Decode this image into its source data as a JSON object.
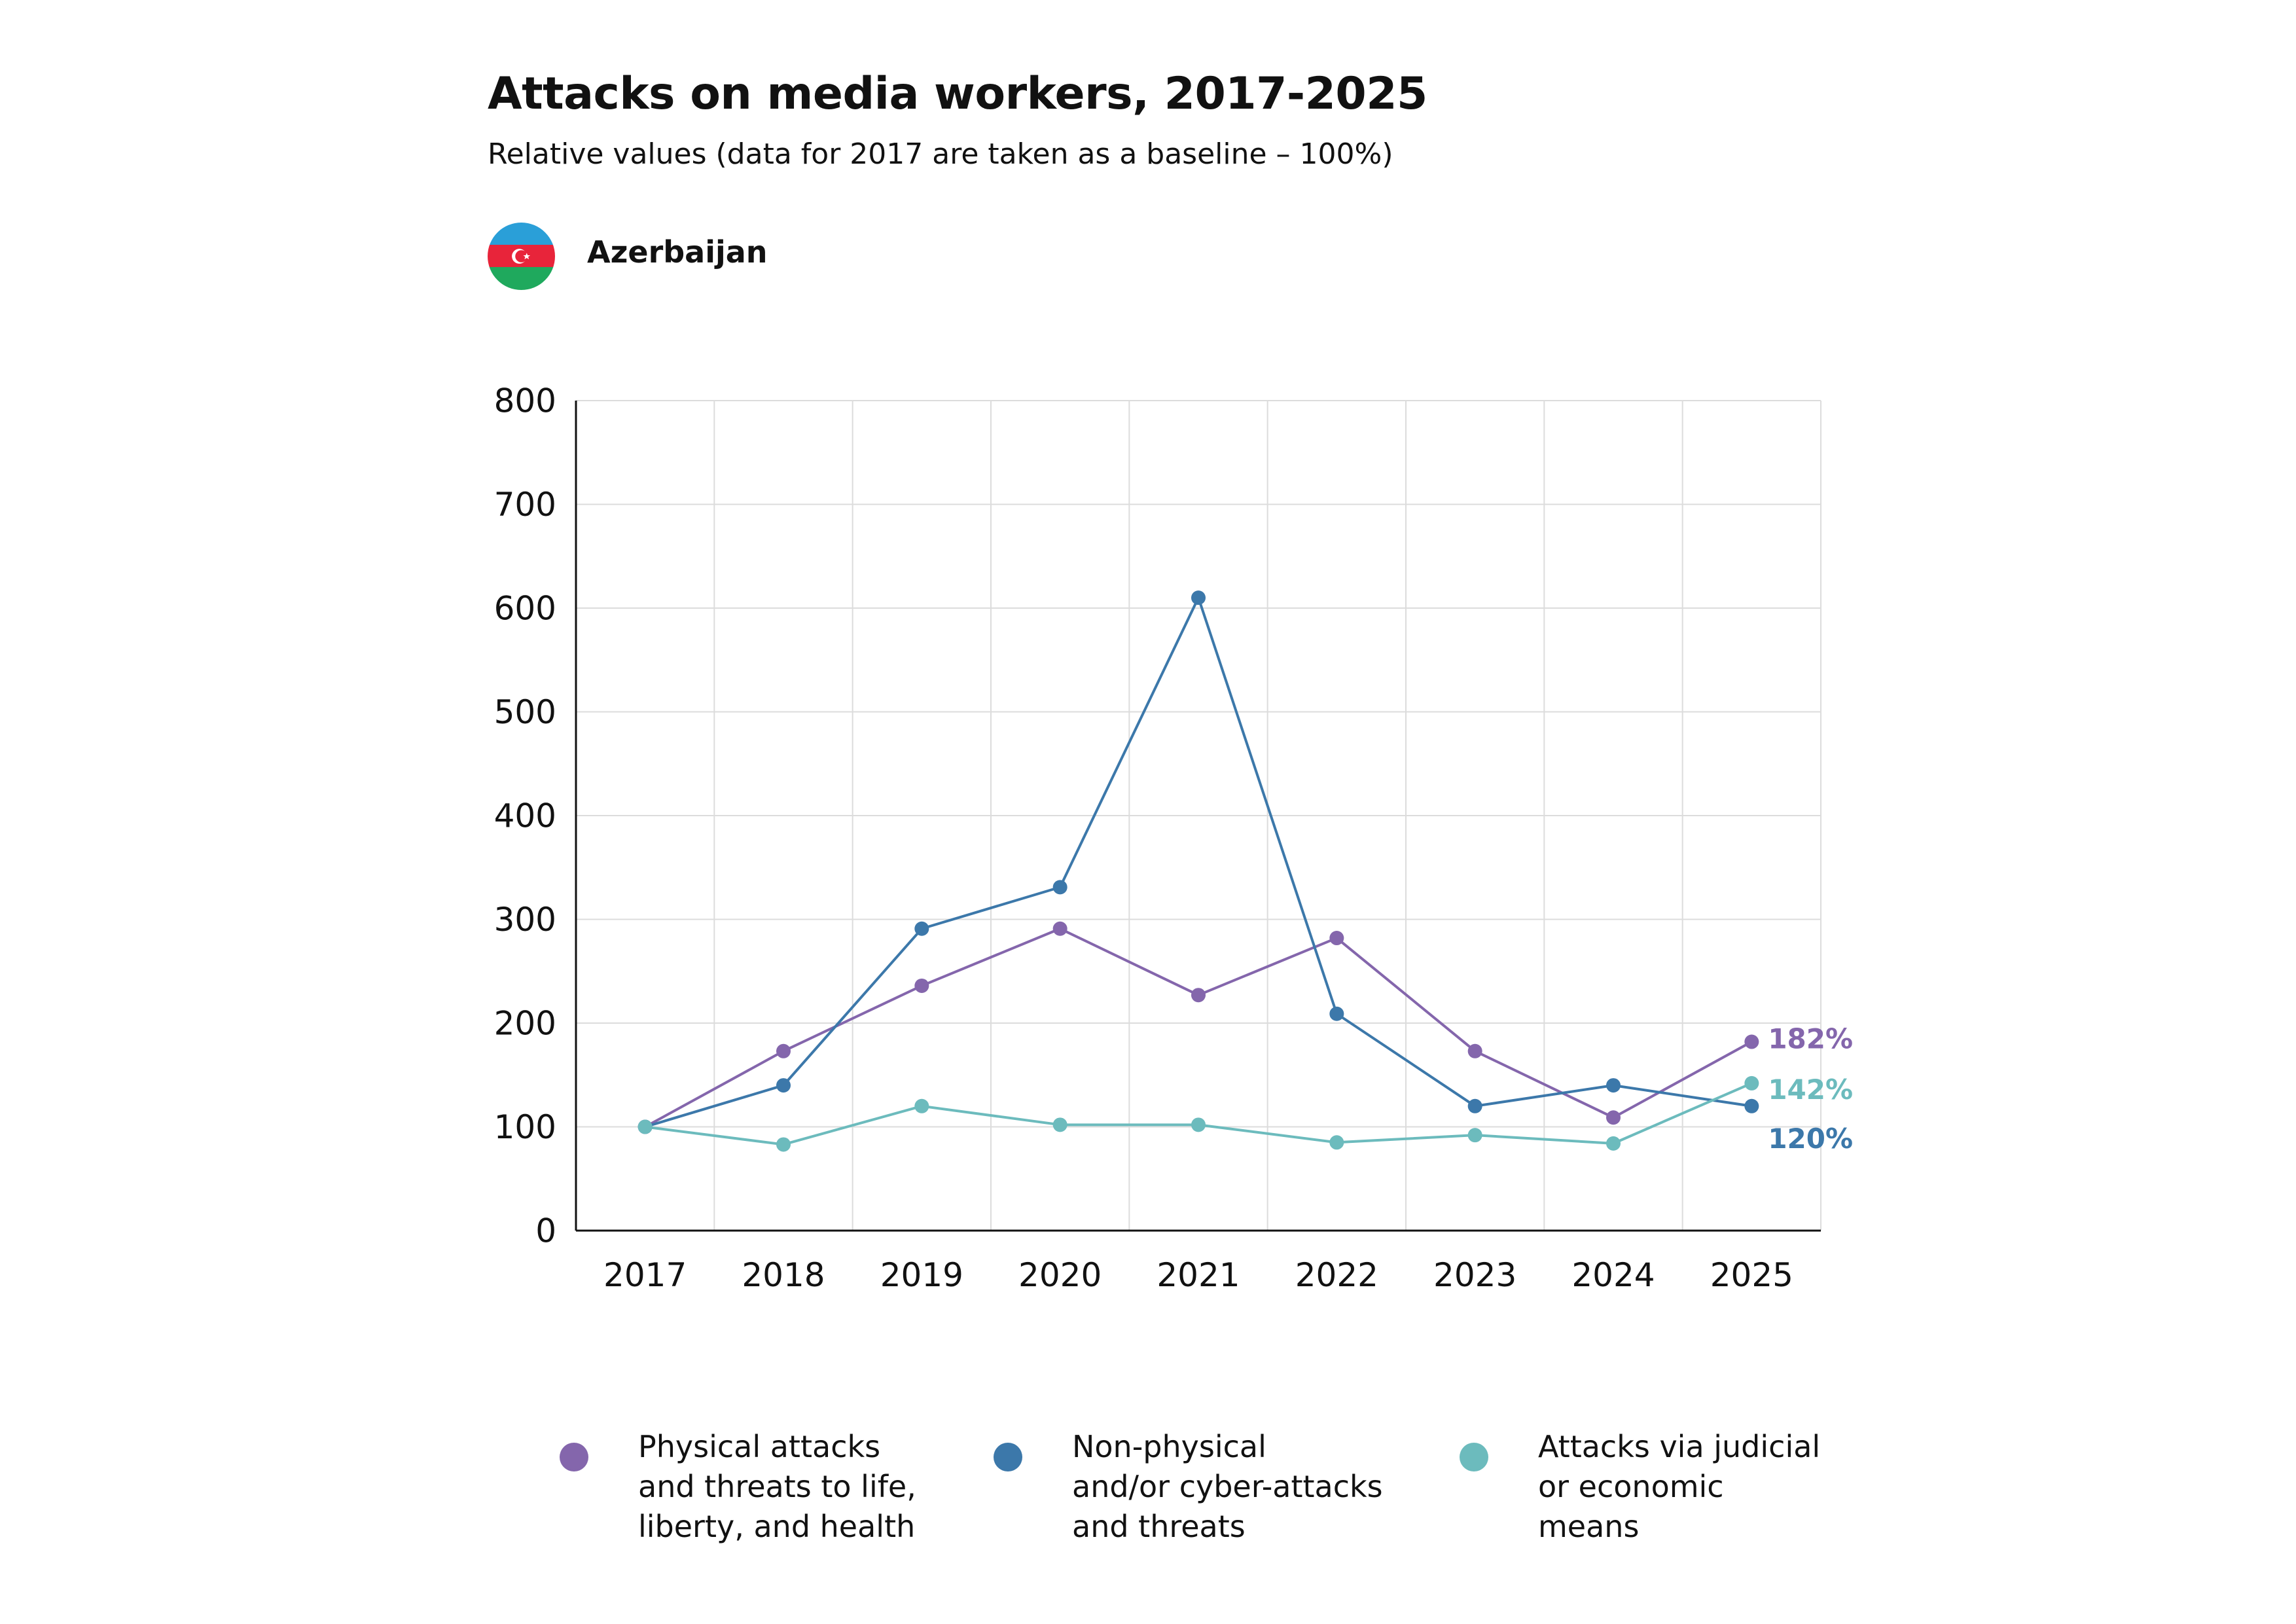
{
  "header": {
    "title": "Attacks on media workers, 2017-2025",
    "subtitle": "Relative values (data for 2017 are taken as a baseline – 100%)",
    "country": "Azerbaijan",
    "flag_icon": "azerbaijan-flag-icon",
    "flag_colors": {
      "blue": "#2a9fd8",
      "red": "#e8243a",
      "green": "#1fa95d"
    }
  },
  "chart_data": {
    "type": "line",
    "title": "Attacks on media workers, 2017-2025",
    "subtitle": "Relative values (data for 2017 are taken as a baseline – 100%)",
    "xlabel": "",
    "ylabel": "",
    "categories": [
      "2017",
      "2018",
      "2019",
      "2020",
      "2021",
      "2022",
      "2023",
      "2024",
      "2025"
    ],
    "ylim": [
      0,
      800
    ],
    "yticks": [
      0,
      100,
      200,
      300,
      400,
      500,
      600,
      700,
      800
    ],
    "grid": true,
    "legend_position": "bottom",
    "series": [
      {
        "name": "Physical attacks\nand threats to life,\nliberty, and health",
        "color": "#8466ac",
        "values": [
          100,
          173,
          236,
          291,
          227,
          282,
          173,
          109,
          182
        ],
        "end_label": "182%"
      },
      {
        "name": "Non-physical\nand/or cyber-attacks\nand threats",
        "color": "#3c78aa",
        "values": [
          100,
          140,
          291,
          331,
          610,
          209,
          120,
          140,
          120
        ],
        "end_label": "120%"
      },
      {
        "name": "Attacks via judicial\nor economic\nmeans",
        "color": "#6cbbbd",
        "values": [
          100,
          83,
          120,
          102,
          102,
          85,
          92,
          84,
          142
        ],
        "end_label": "142%"
      }
    ]
  }
}
